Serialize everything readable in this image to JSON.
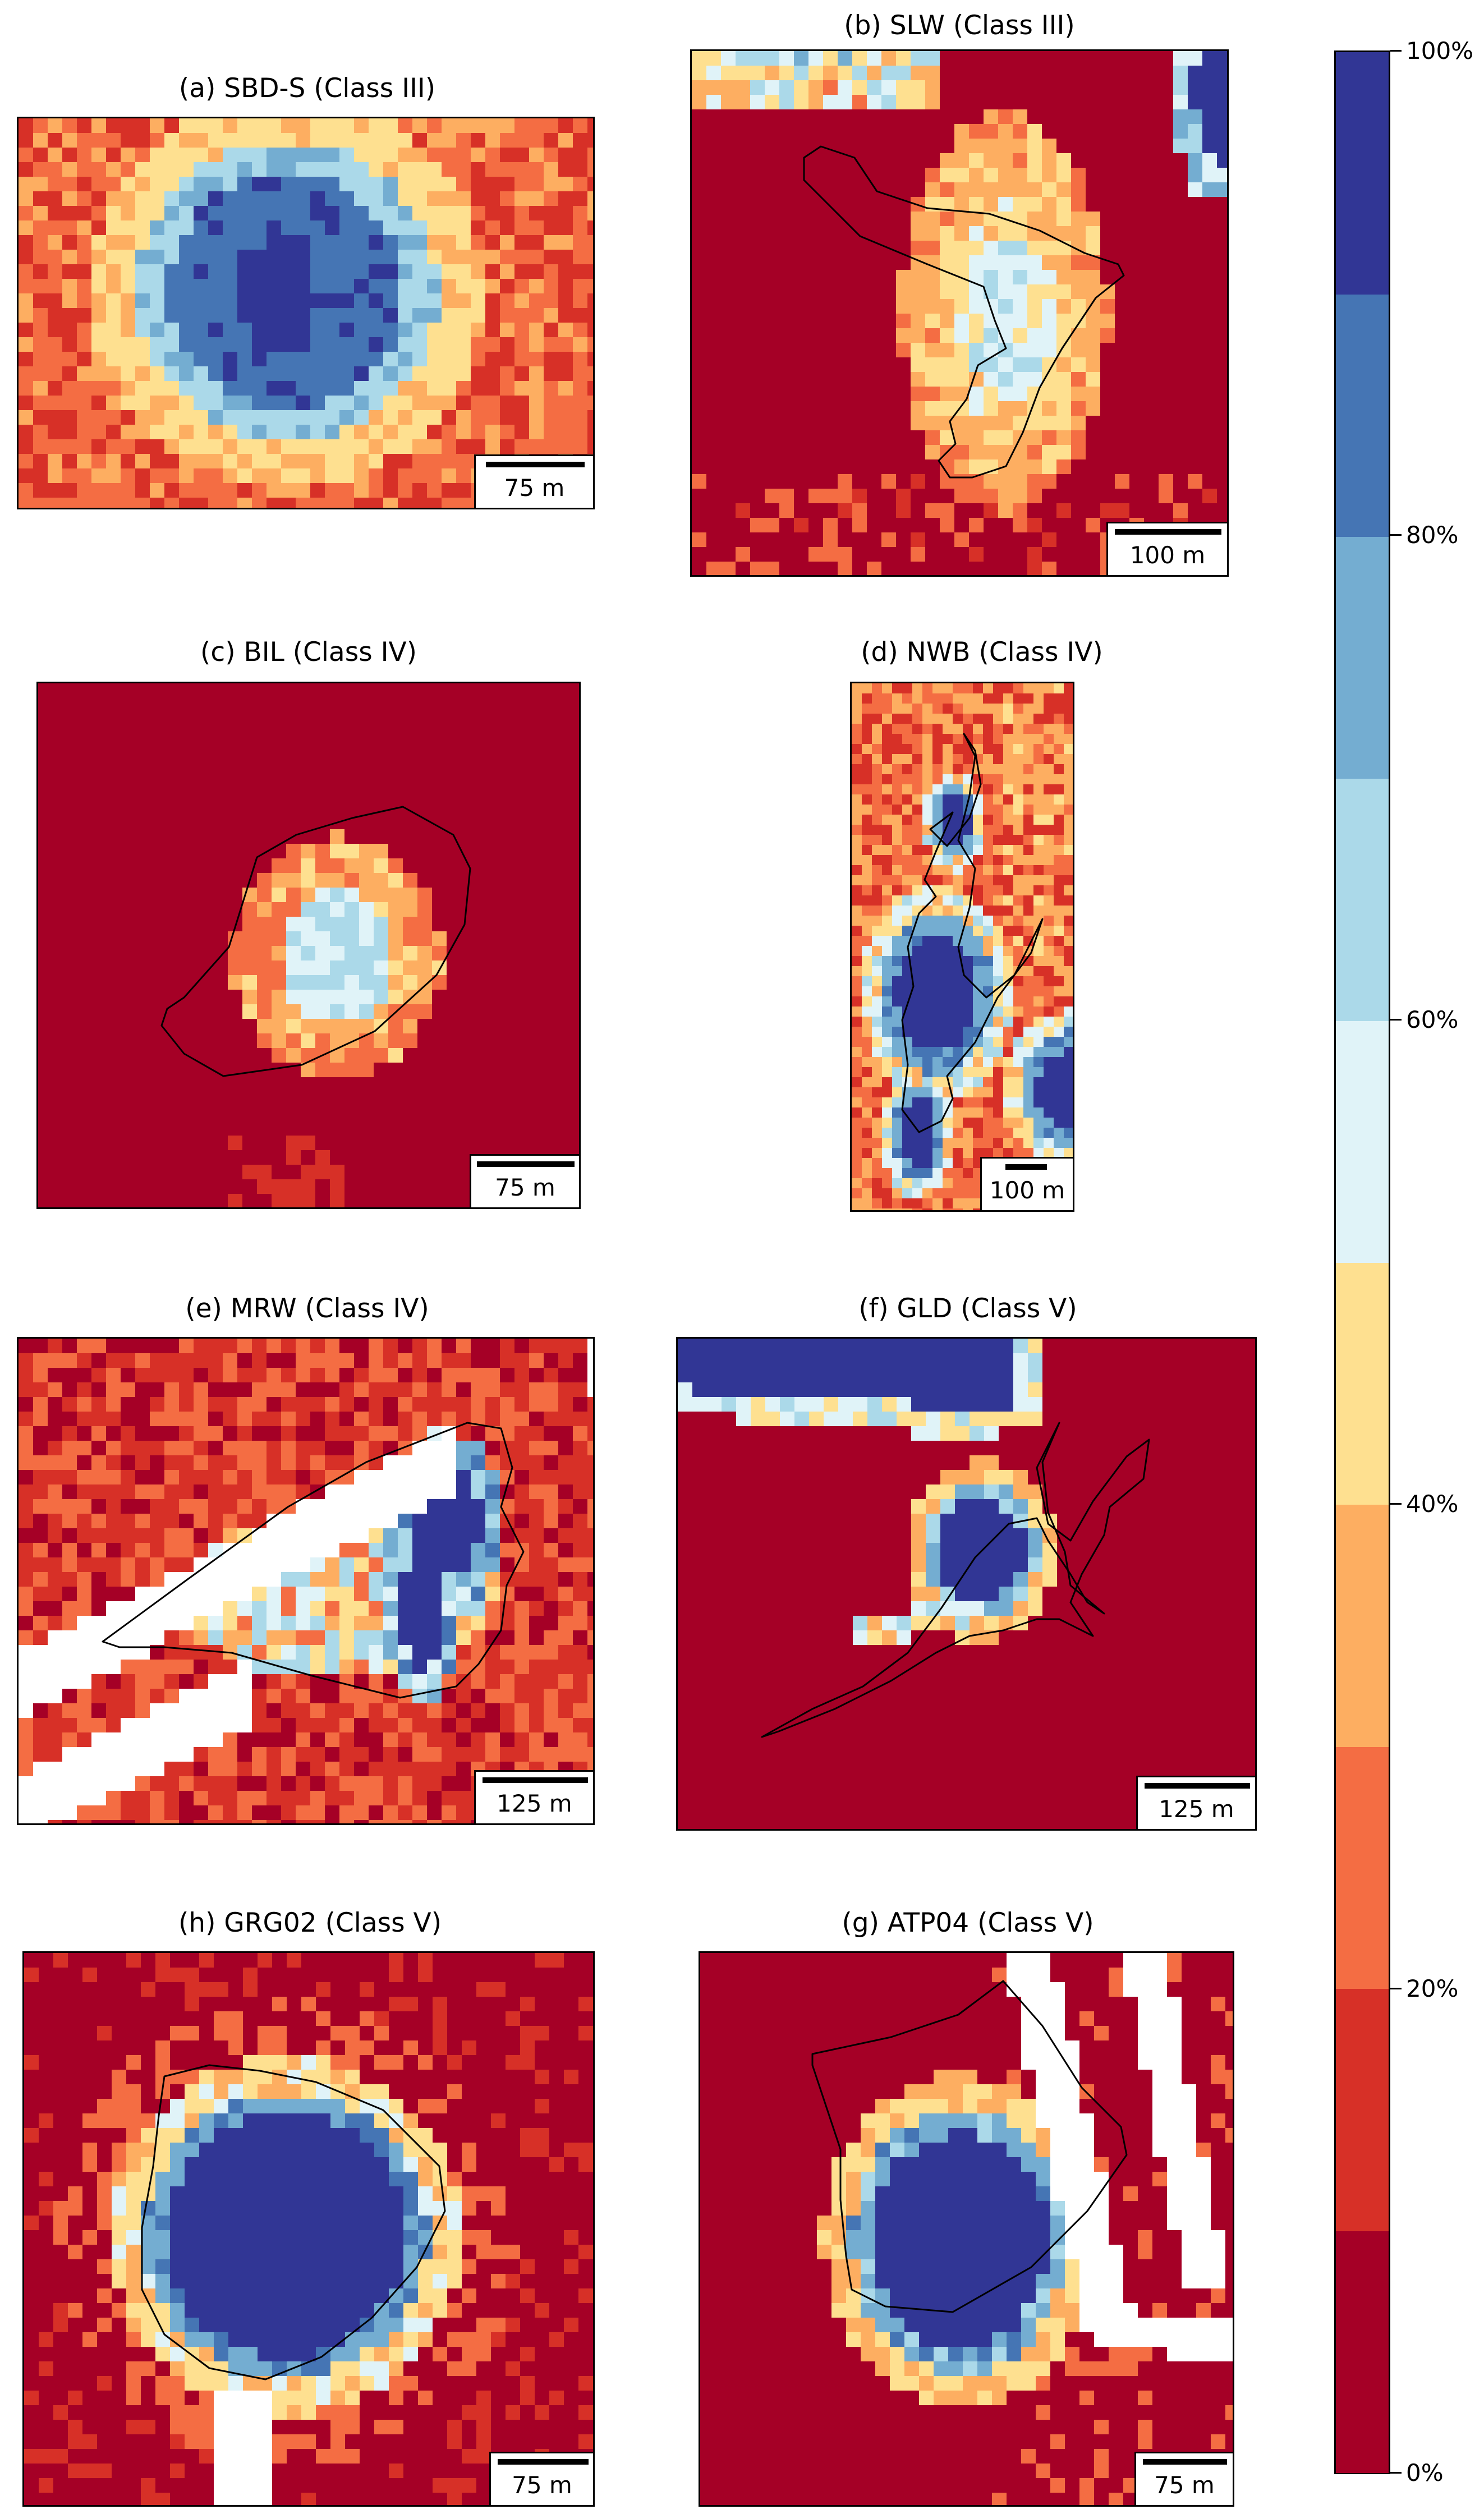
{
  "colormap": [
    "#a50026",
    "#d73027",
    "#f46d43",
    "#fdae61",
    "#fee090",
    "#e0f3f8",
    "#abd9e9",
    "#74add1",
    "#4575b4",
    "#313695"
  ],
  "colorbar": {
    "ticks": [
      "0%",
      "20%",
      "40%",
      "60%",
      "80%",
      "100%"
    ],
    "tick_values": [
      0,
      20,
      40,
      60,
      80,
      100
    ],
    "levels": [
      0,
      10,
      20,
      30,
      40,
      50,
      60,
      70,
      80,
      90,
      100
    ]
  },
  "panels": [
    {
      "id": "a",
      "title": "(a) SBD-S (Class III)",
      "scale_label": "75 m"
    },
    {
      "id": "b",
      "title": "(b) SLW (Class III)",
      "scale_label": "100 m"
    },
    {
      "id": "c",
      "title": "(c) BIL (Class IV)",
      "scale_label": "75 m"
    },
    {
      "id": "d",
      "title": "(d) NWB (Class IV)",
      "scale_label": "100 m"
    },
    {
      "id": "e",
      "title": "(e) MRW (Class IV)",
      "scale_label": "125 m"
    },
    {
      "id": "f",
      "title": "(f) GLD (Class V)",
      "scale_label": "125 m"
    },
    {
      "id": "h",
      "title": "(h) GRG02 (Class V)",
      "scale_label": "75 m"
    },
    {
      "id": "g",
      "title": "(g) ATP04 (Class V)",
      "scale_label": "75 m"
    }
  ],
  "chart_data": {
    "type": "heatmap",
    "colorbar_range": [
      0,
      100
    ],
    "colorbar_unit": "%",
    "panels": [
      "(a) SBD-S (Class III)",
      "(b) SLW (Class III)",
      "(c) BIL (Class IV)",
      "(d) NWB (Class IV)",
      "(e) MRW (Class IV)",
      "(f) GLD (Class V)",
      "(h) GRG02 (Class V)",
      "(g) ATP04 (Class V)"
    ]
  }
}
